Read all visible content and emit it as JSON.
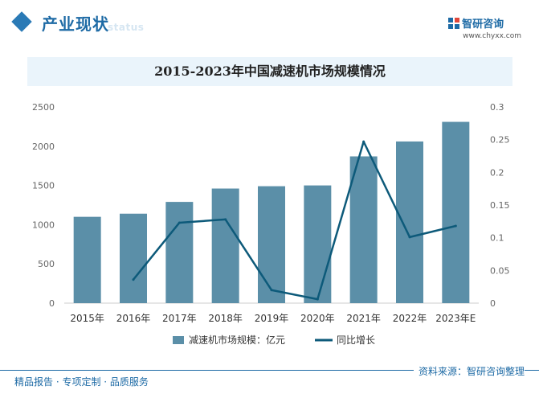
{
  "header": {
    "section_title": "产业现状",
    "section_subtitle": "status",
    "brand_name": "智研咨询",
    "brand_url": "www.chyxx.com"
  },
  "footer": {
    "left_text": "精品报告 · 专项定制 · 品质服务",
    "source": "资料来源：智研咨询整理"
  },
  "colors": {
    "bar": "#5b8fa8",
    "line": "#0d5a7a",
    "accent": "#1d6aa5"
  },
  "chart_data": {
    "type": "bar",
    "title": "2015-2023年中国减速机市场规模情况",
    "categories": [
      "2015年",
      "2016年",
      "2017年",
      "2018年",
      "2019年",
      "2020年",
      "2021年",
      "2022年",
      "2023年E"
    ],
    "series": [
      {
        "name": "减速机市场规模：亿元",
        "type": "bar",
        "axis": "left",
        "values": [
          1100,
          1140,
          1290,
          1460,
          1490,
          1500,
          1870,
          2060,
          2310
        ]
      },
      {
        "name": "同比增长",
        "type": "line",
        "axis": "right",
        "values": [
          null,
          0.036,
          0.123,
          0.128,
          0.02,
          0.006,
          0.247,
          0.101,
          0.118
        ]
      }
    ],
    "y_left": {
      "min": 0,
      "max": 2500,
      "ticks": [
        "0",
        "500",
        "1000",
        "1500",
        "2000",
        "2500"
      ]
    },
    "y_right": {
      "min": 0,
      "max": 0.3,
      "ticks": [
        "0",
        "0.05",
        "0.1",
        "0.15",
        "0.2",
        "0.25",
        "0.3"
      ]
    },
    "legend_position": "bottom"
  }
}
